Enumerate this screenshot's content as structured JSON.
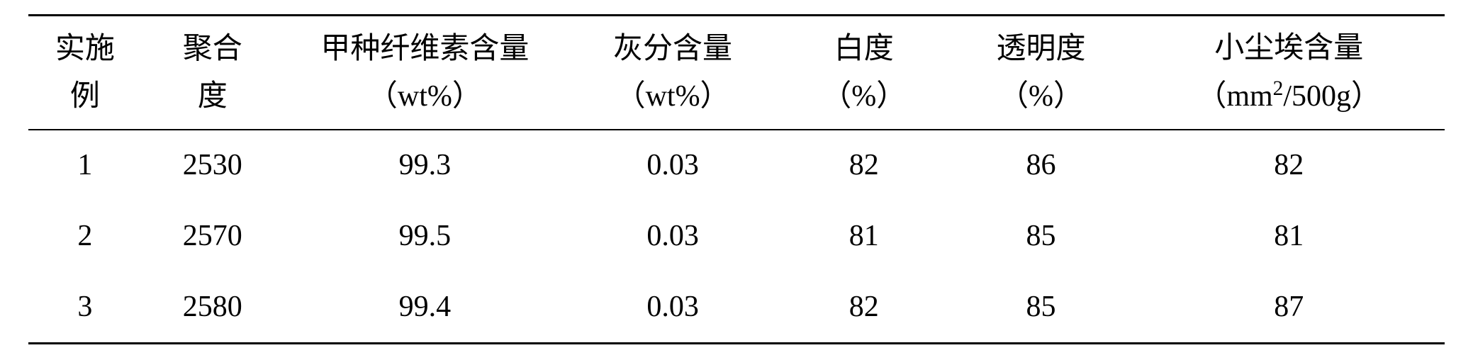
{
  "table": {
    "columns": [
      {
        "line1": "实施",
        "line2": "例"
      },
      {
        "line1": "聚合",
        "line2": "度"
      },
      {
        "line1": "甲种纤维素含量",
        "line2": "（wt%）"
      },
      {
        "line1": "灰分含量",
        "line2": "（wt%）"
      },
      {
        "line1": "白度",
        "line2": "（%）"
      },
      {
        "line1": "透明度",
        "line2": "（%）"
      },
      {
        "line1": "小尘埃含量",
        "line2_prefix": "（mm",
        "line2_sup": "2",
        "line2_suffix": "/500g）"
      }
    ],
    "rows": [
      [
        "1",
        "2530",
        "99.3",
        "0.03",
        "82",
        "86",
        "82"
      ],
      [
        "2",
        "2570",
        "99.5",
        "0.03",
        "81",
        "85",
        "81"
      ],
      [
        "3",
        "2580",
        "99.4",
        "0.03",
        "82",
        "85",
        "87"
      ]
    ],
    "column_widths": [
      "8%",
      "10%",
      "20%",
      "15%",
      "12%",
      "13%",
      "22%"
    ],
    "border_color": "#000000",
    "background_color": "#ffffff",
    "text_color": "#000000",
    "font_size": 42,
    "header_line_height": 1.6,
    "body_line_height": 1.8
  }
}
